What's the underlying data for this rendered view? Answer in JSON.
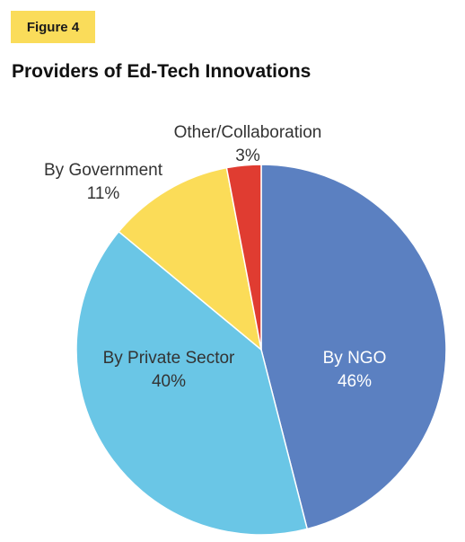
{
  "figure_label": "Figure 4",
  "title": "Providers of Ed-Tech Innovations",
  "colors": {
    "badge": "#fadc5a",
    "text_dark": "#333333",
    "text_light": "#ffffff"
  },
  "chart_data": {
    "type": "pie",
    "title": "Providers of Ed-Tech Innovations",
    "start": "12 o'clock, clockwise",
    "slices": [
      {
        "label": "By NGO",
        "value": 46,
        "display": "46%",
        "color": "#5b80c1",
        "label_color": "#ffffff"
      },
      {
        "label": "By Private Sector",
        "value": 40,
        "display": "40%",
        "color": "#6ac6e6",
        "label_color": "#333333"
      },
      {
        "label": "By Government",
        "value": 11,
        "display": "11%",
        "color": "#fbdc58",
        "label_color": "#333333"
      },
      {
        "label": "Other/Collaboration",
        "value": 3,
        "display": "3%",
        "color": "#e03c31",
        "label_color": "#333333"
      }
    ]
  }
}
